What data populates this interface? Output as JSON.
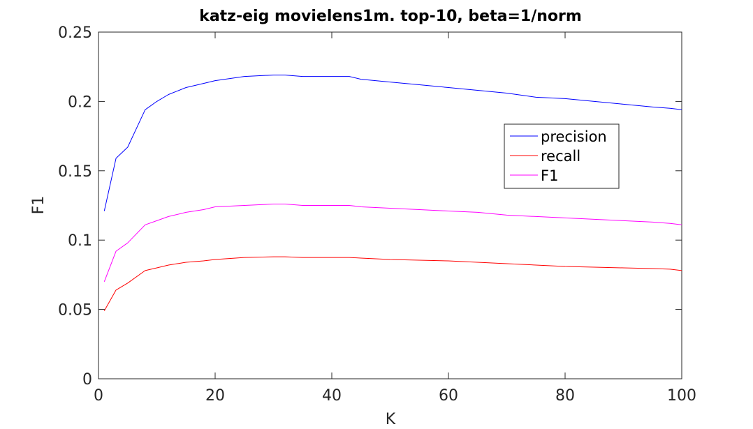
{
  "chart_data": {
    "type": "line",
    "title": "katz-eig movielens1m. top-10, beta=1/norm",
    "xlabel": "K",
    "ylabel": "F1",
    "xlim": [
      0,
      100
    ],
    "ylim": [
      0,
      0.25
    ],
    "xticks": [
      0,
      20,
      40,
      60,
      80,
      100
    ],
    "xtick_labels": [
      "0",
      "20",
      "40",
      "60",
      "80",
      "100"
    ],
    "yticks": [
      0,
      0.05,
      0.1,
      0.15,
      0.2,
      0.25
    ],
    "ytick_labels": [
      "0",
      "0.05",
      "0.1",
      "0.15",
      "0.2",
      "0.25"
    ],
    "grid": false,
    "legend_position": "right",
    "series": [
      {
        "name": "precision",
        "color": "#0000ff",
        "x": [
          1,
          3,
          5,
          8,
          10,
          12,
          15,
          18,
          20,
          25,
          30,
          32,
          35,
          40,
          43,
          45,
          50,
          55,
          60,
          65,
          70,
          75,
          80,
          85,
          90,
          95,
          98,
          100
        ],
        "y": [
          0.121,
          0.159,
          0.167,
          0.194,
          0.2,
          0.205,
          0.21,
          0.213,
          0.215,
          0.218,
          0.219,
          0.219,
          0.218,
          0.218,
          0.218,
          0.216,
          0.214,
          0.212,
          0.21,
          0.208,
          0.206,
          0.203,
          0.202,
          0.2,
          0.198,
          0.196,
          0.195,
          0.194
        ]
      },
      {
        "name": "recall",
        "color": "#ff0000",
        "x": [
          1,
          3,
          5,
          8,
          10,
          12,
          15,
          18,
          20,
          25,
          30,
          32,
          35,
          40,
          43,
          45,
          50,
          55,
          60,
          65,
          70,
          75,
          80,
          85,
          90,
          95,
          98,
          100
        ],
        "y": [
          0.049,
          0.064,
          0.069,
          0.078,
          0.08,
          0.082,
          0.084,
          0.085,
          0.086,
          0.0875,
          0.088,
          0.088,
          0.0875,
          0.0875,
          0.0875,
          0.087,
          0.086,
          0.0855,
          0.085,
          0.084,
          0.083,
          0.082,
          0.081,
          0.0805,
          0.08,
          0.0795,
          0.079,
          0.078
        ]
      },
      {
        "name": "F1",
        "color": "#ff00ff",
        "x": [
          1,
          3,
          5,
          8,
          10,
          12,
          15,
          18,
          20,
          25,
          30,
          32,
          35,
          40,
          43,
          45,
          50,
          55,
          60,
          65,
          70,
          75,
          80,
          85,
          90,
          95,
          98,
          100
        ],
        "y": [
          0.07,
          0.092,
          0.098,
          0.111,
          0.114,
          0.117,
          0.12,
          0.122,
          0.124,
          0.125,
          0.126,
          0.126,
          0.125,
          0.125,
          0.125,
          0.124,
          0.123,
          0.122,
          0.121,
          0.12,
          0.118,
          0.117,
          0.116,
          0.115,
          0.114,
          0.113,
          0.112,
          0.111
        ]
      }
    ]
  }
}
